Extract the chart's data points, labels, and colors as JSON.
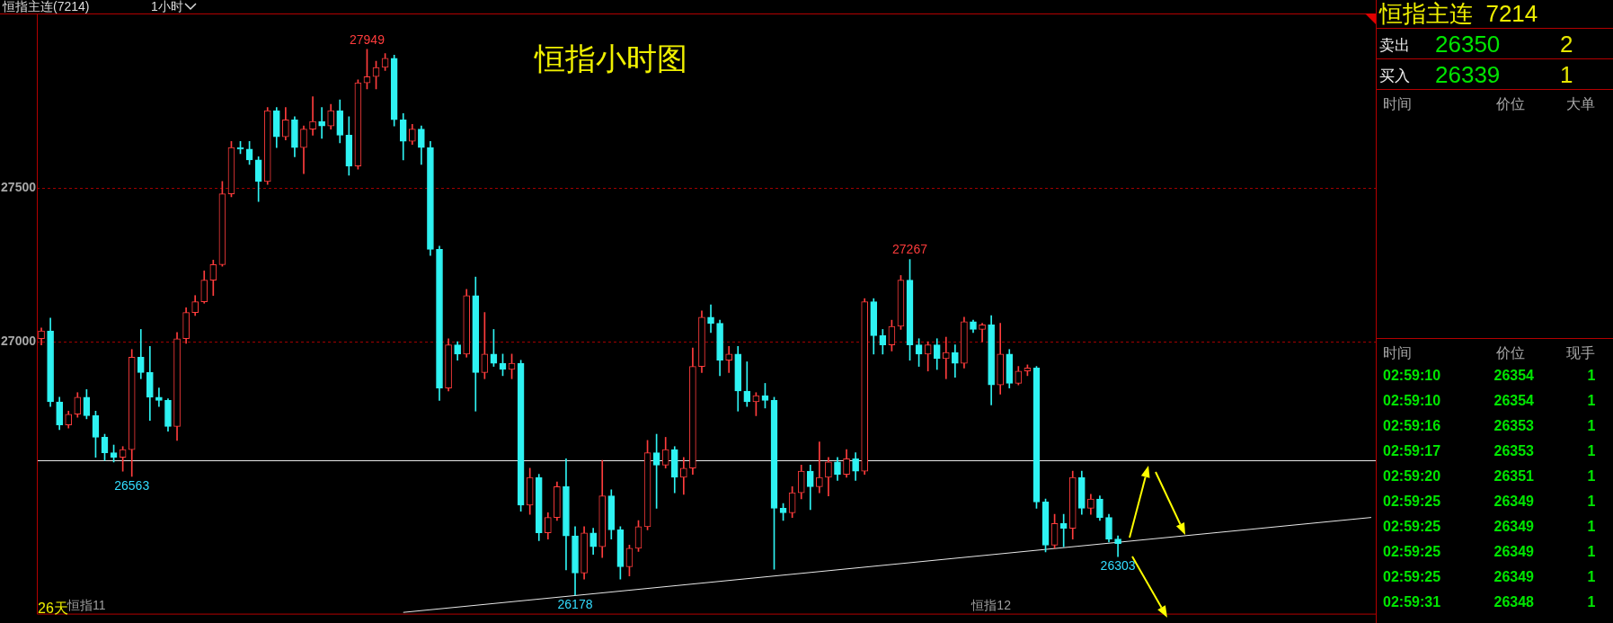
{
  "chart_data": [
    {
      "type": "candlestick",
      "title": "恒指小时图",
      "subtitle": "恒指主连(7214)",
      "categories": [
        null,
        null,
        null,
        null,
        null,
        "恒指11",
        null,
        null,
        null,
        null,
        null,
        null,
        null,
        null,
        null,
        null,
        null,
        null,
        null,
        null,
        null,
        null,
        null,
        null,
        null,
        null,
        null,
        null,
        null,
        null,
        null,
        null,
        null,
        null,
        null,
        null,
        null,
        null,
        null,
        null,
        null,
        null,
        null,
        null,
        null,
        null,
        null,
        null,
        null,
        null,
        null,
        null,
        null,
        null,
        null,
        null,
        null,
        null,
        null,
        null,
        null,
        null,
        null,
        null,
        null,
        null,
        null,
        null,
        null,
        null,
        null,
        null,
        null,
        null,
        null,
        null,
        null,
        null,
        null,
        null,
        null,
        null,
        null,
        null,
        null,
        null,
        null,
        null,
        null,
        null,
        null,
        null,
        null,
        null,
        null,
        null,
        null,
        null,
        null,
        null,
        null,
        null,
        null,
        null,
        null,
        "恒指12",
        null,
        null,
        null,
        null,
        null,
        null,
        null,
        null,
        null,
        null,
        null,
        null,
        null,
        null,
        null,
        null,
        null,
        null,
        null,
        null,
        null,
        null,
        null,
        null,
        null,
        null,
        null,
        null,
        null,
        null,
        null,
        null,
        null,
        null,
        null,
        null,
        null,
        null,
        null,
        null,
        null,
        null
      ],
      "ohlc": [
        [
          27010,
          27045,
          26990,
          27035
        ],
        [
          27035,
          27077,
          26790,
          26805
        ],
        [
          26805,
          26820,
          26715,
          26730
        ],
        [
          26730,
          26775,
          26720,
          26765
        ],
        [
          26765,
          26835,
          26755,
          26820
        ],
        [
          26820,
          26845,
          26750,
          26760
        ],
        [
          26760,
          26775,
          26625,
          26690
        ],
        [
          26690,
          26700,
          26615,
          26640
        ],
        [
          26640,
          26665,
          26610,
          26625
        ],
        [
          26625,
          26660,
          26580,
          26650
        ],
        [
          26650,
          26975,
          26563,
          26950
        ],
        [
          26950,
          27040,
          26880,
          26900
        ],
        [
          26900,
          26985,
          26745,
          26820
        ],
        [
          26820,
          26850,
          26790,
          26810
        ],
        [
          26810,
          26815,
          26710,
          26725
        ],
        [
          26725,
          27030,
          26680,
          27010
        ],
        [
          27010,
          27110,
          26995,
          27095
        ],
        [
          27095,
          27150,
          27085,
          27130
        ],
        [
          27130,
          27230,
          27125,
          27200
        ],
        [
          27200,
          27265,
          27150,
          27250
        ],
        [
          27250,
          27520,
          27245,
          27480
        ],
        [
          27480,
          27650,
          27470,
          27630
        ],
        [
          27630,
          27650,
          27610,
          27625
        ],
        [
          27625,
          27650,
          27575,
          27590
        ],
        [
          27590,
          27600,
          27455,
          27520
        ],
        [
          27520,
          27760,
          27510,
          27750
        ],
        [
          27750,
          27760,
          27630,
          27665
        ],
        [
          27665,
          27760,
          27655,
          27720
        ],
        [
          27720,
          27730,
          27600,
          27630
        ],
        [
          27630,
          27700,
          27545,
          27690
        ],
        [
          27690,
          27795,
          27670,
          27715
        ],
        [
          27715,
          27760,
          27660,
          27700
        ],
        [
          27700,
          27770,
          27690,
          27750
        ],
        [
          27750,
          27785,
          27645,
          27670
        ],
        [
          27670,
          27730,
          27540,
          27570
        ],
        [
          27570,
          27850,
          27560,
          27840
        ],
        [
          27840,
          27949,
          27820,
          27860
        ],
        [
          27860,
          27910,
          27820,
          27890
        ],
        [
          27890,
          27935,
          27880,
          27920
        ],
        [
          27920,
          27930,
          27700,
          27720
        ],
        [
          27720,
          27740,
          27590,
          27650
        ],
        [
          27650,
          27705,
          27640,
          27690
        ],
        [
          27690,
          27700,
          27575,
          27630
        ],
        [
          27630,
          27650,
          27280,
          27300
        ],
        [
          27300,
          27310,
          26810,
          26850
        ],
        [
          26850,
          27010,
          26840,
          26990
        ],
        [
          26990,
          27000,
          26940,
          26960
        ],
        [
          26960,
          27170,
          26950,
          27150
        ],
        [
          27150,
          27210,
          26775,
          26900
        ],
        [
          26900,
          27095,
          26880,
          26960
        ],
        [
          26960,
          27040,
          26920,
          26930
        ],
        [
          26930,
          26960,
          26890,
          26910
        ],
        [
          26910,
          26960,
          26880,
          26930
        ],
        [
          26930,
          26940,
          26450,
          26470
        ],
        [
          26470,
          26590,
          26440,
          26560
        ],
        [
          26560,
          26570,
          26355,
          26380
        ],
        [
          26380,
          26445,
          26360,
          26430
        ],
        [
          26430,
          26545,
          26420,
          26530
        ],
        [
          26530,
          26620,
          26260,
          26370
        ],
        [
          26370,
          26400,
          26178,
          26250
        ],
        [
          26250,
          26400,
          26230,
          26380
        ],
        [
          26380,
          26395,
          26310,
          26335
        ],
        [
          26335,
          26615,
          26300,
          26500
        ],
        [
          26500,
          26520,
          26360,
          26390
        ],
        [
          26390,
          26400,
          26230,
          26270
        ],
        [
          26270,
          26340,
          26240,
          26330
        ],
        [
          26330,
          26420,
          26320,
          26400
        ],
        [
          26400,
          26680,
          26390,
          26640
        ],
        [
          26640,
          26700,
          26460,
          26600
        ],
        [
          26600,
          26690,
          26590,
          26650
        ],
        [
          26650,
          26660,
          26510,
          26560
        ],
        [
          26560,
          26625,
          26505,
          26590
        ],
        [
          26590,
          26980,
          26570,
          26920
        ],
        [
          26920,
          27100,
          26900,
          27080
        ],
        [
          27080,
          27120,
          27030,
          27060
        ],
        [
          27060,
          27070,
          26890,
          26940
        ],
        [
          26940,
          26985,
          26900,
          26960
        ],
        [
          26960,
          26985,
          26775,
          26840
        ],
        [
          26840,
          26935,
          26790,
          26805
        ],
        [
          26805,
          26835,
          26760,
          26825
        ],
        [
          26825,
          26865,
          26785,
          26810
        ],
        [
          26810,
          26820,
          26262,
          26460
        ],
        [
          26460,
          26475,
          26420,
          26445
        ],
        [
          26445,
          26530,
          26430,
          26510
        ],
        [
          26510,
          26600,
          26490,
          26580
        ],
        [
          26580,
          26600,
          26455,
          26530
        ],
        [
          26530,
          26675,
          26510,
          26560
        ],
        [
          26560,
          26625,
          26500,
          26610
        ],
        [
          26610,
          26625,
          26550,
          26570
        ],
        [
          26570,
          26650,
          26560,
          26620
        ],
        [
          26620,
          26640,
          26550,
          26580
        ],
        [
          26580,
          27140,
          26570,
          27130
        ],
        [
          27130,
          27140,
          26960,
          27020
        ],
        [
          27020,
          27040,
          26960,
          26990
        ],
        [
          26990,
          27070,
          26970,
          27050
        ],
        [
          27050,
          27215,
          27040,
          27200
        ],
        [
          27200,
          27267,
          26940,
          26990
        ],
        [
          26990,
          27010,
          26920,
          26960
        ],
        [
          26960,
          27000,
          26905,
          26990
        ],
        [
          26990,
          27010,
          26910,
          26945
        ],
        [
          26945,
          27015,
          26880,
          26965
        ],
        [
          26965,
          26990,
          26885,
          26930
        ],
        [
          26930,
          27080,
          26915,
          27065
        ],
        [
          27065,
          27070,
          27030,
          27040
        ],
        [
          27040,
          27060,
          27000,
          27055
        ],
        [
          27055,
          27085,
          26795,
          26860
        ],
        [
          26860,
          27060,
          26830,
          26960
        ],
        [
          26960,
          26975,
          26850,
          26865
        ],
        [
          26865,
          26920,
          26860,
          26905
        ],
        [
          26905,
          26925,
          26890,
          26915
        ],
        [
          26915,
          26920,
          26460,
          26480
        ],
        [
          26480,
          26490,
          26318,
          26340
        ],
        [
          26340,
          26440,
          26330,
          26410
        ],
        [
          26410,
          26440,
          26335,
          26395
        ],
        [
          26395,
          26580,
          26360,
          26560
        ],
        [
          26560,
          26580,
          26440,
          26460
        ],
        [
          26460,
          26505,
          26440,
          26490
        ],
        [
          26490,
          26500,
          26420,
          26430
        ],
        [
          26430,
          26440,
          26350,
          26360
        ],
        [
          26360,
          26370,
          26303,
          26345
        ],
        null,
        null,
        null,
        null,
        null,
        null,
        null,
        null,
        null,
        null,
        null,
        null,
        null,
        null,
        null,
        null,
        null,
        null,
        null,
        null,
        null,
        null,
        null,
        null,
        null,
        null,
        null,
        null
      ],
      "colors": [
        "#ff3c3c",
        "#2ef2f2",
        "#2ef2f2",
        "#ff3c3c",
        "#ff3c3c",
        "#2ef2f2",
        "#2ef2f2",
        "#2ef2f2",
        "#2ef2f2",
        "#ff3c3c",
        "#ff3c3c",
        "#2ef2f2",
        "#2ef2f2",
        "#2ef2f2",
        "#2ef2f2",
        "#ff3c3c",
        "#ff3c3c",
        "#ff3c3c",
        "#ff3c3c",
        "#ff3c3c",
        "#ff3c3c",
        "#ff3c3c",
        "#2ef2f2",
        "#2ef2f2",
        "#2ef2f2",
        "#ff3c3c",
        "#2ef2f2",
        "#ff3c3c",
        "#2ef2f2",
        "#ff3c3c",
        "#ff3c3c",
        "#2ef2f2",
        "#ff3c3c",
        "#2ef2f2",
        "#2ef2f2",
        "#ff3c3c",
        "#ff3c3c",
        "#ff3c3c",
        "#ff3c3c",
        "#2ef2f2",
        "#2ef2f2",
        "#ff3c3c",
        "#2ef2f2",
        "#2ef2f2",
        "#2ef2f2",
        "#ff3c3c",
        "#2ef2f2",
        "#ff3c3c",
        "#2ef2f2",
        "#ff3c3c",
        "#2ef2f2",
        "#2ef2f2",
        "#ff3c3c",
        "#2ef2f2",
        "#ff3c3c",
        "#2ef2f2",
        "#ff3c3c",
        "#ff3c3c",
        "#2ef2f2",
        "#2ef2f2",
        "#ff3c3c",
        "#2ef2f2",
        "#ff3c3c",
        "#2ef2f2",
        "#2ef2f2",
        "#ff3c3c",
        "#ff3c3c",
        "#ff3c3c",
        "#2ef2f2",
        "#ff3c3c",
        "#2ef2f2",
        "#ff3c3c",
        "#ff3c3c",
        "#ff3c3c",
        "#2ef2f2",
        "#2ef2f2",
        "#ff3c3c",
        "#2ef2f2",
        "#2ef2f2",
        "#ff3c3c",
        "#2ef2f2",
        "#2ef2f2",
        "#2ef2f2",
        "#ff3c3c",
        "#ff3c3c",
        "#2ef2f2",
        "#ff3c3c",
        "#ff3c3c",
        "#2ef2f2",
        "#ff3c3c",
        "#2ef2f2",
        "#ff3c3c",
        "#2ef2f2",
        "#2ef2f2",
        "#ff3c3c",
        "#ff3c3c",
        "#2ef2f2",
        "#2ef2f2",
        "#ff3c3c",
        "#2ef2f2",
        "#ff3c3c",
        "#2ef2f2",
        "#ff3c3c",
        "#2ef2f2",
        "#ff3c3c",
        "#2ef2f2",
        "#ff3c3c",
        "#2ef2f2",
        "#ff3c3c",
        "#ff3c3c",
        "#2ef2f2",
        "#2ef2f2",
        "#ff3c3c",
        "#2ef2f2",
        "#ff3c3c",
        "#2ef2f2",
        "#ff3c3c",
        "#2ef2f2",
        "#2ef2f2",
        "#2ef2f2",
        null,
        null,
        null,
        null,
        null,
        null,
        null,
        null,
        null,
        null,
        null,
        null,
        null,
        null,
        null,
        null,
        null,
        null,
        null,
        null,
        null,
        null,
        null,
        null,
        null,
        null,
        null,
        null
      ],
      "series": [
        {
          "type": "line",
          "color": "#e8e8e8",
          "values": [
            null,
            null,
            null,
            null,
            null,
            null,
            null,
            null,
            null,
            null,
            null,
            null,
            null,
            null,
            null,
            null,
            null,
            null,
            null,
            null,
            null,
            null,
            null,
            null,
            null,
            null,
            null,
            null,
            null,
            null,
            null,
            null,
            null,
            null,
            null,
            null,
            null,
            null,
            null,
            null,
            26122,
            null,
            null,
            null,
            null,
            null,
            null,
            null,
            null,
            null,
            null,
            null,
            null,
            null,
            null,
            null,
            null,
            null,
            null,
            null,
            null,
            null,
            null,
            null,
            null,
            null,
            null,
            null,
            null,
            null,
            null,
            null,
            null,
            null,
            null,
            null,
            null,
            null,
            null,
            null,
            null,
            null,
            null,
            null,
            null,
            null,
            null,
            null,
            null,
            null,
            null,
            null,
            null,
            null,
            null,
            null,
            null,
            null,
            null,
            null,
            null,
            null,
            null,
            null,
            null,
            null,
            null,
            null,
            null,
            null,
            null,
            null,
            null,
            null,
            null,
            null,
            null,
            null,
            null,
            null,
            null,
            null,
            null,
            null,
            null,
            null,
            null,
            null,
            null,
            null,
            null,
            null,
            null,
            null,
            null,
            null,
            null,
            null,
            null,
            null,
            null,
            null,
            null,
            null,
            null,
            null,
            null,
            26430
          ]
        }
      ],
      "ylim": [
        26115,
        28065
      ],
      "yticks": [
        27000,
        27500
      ],
      "grid": "y",
      "ref_lines": [
        {
          "axis": "y",
          "value": 26615,
          "color": "#e8e8e8"
        }
      ],
      "annotations": [
        "1小时",
        "26天",
        {
          "text": "27949",
          "y": 27949
        },
        {
          "text": "26563",
          "y": 26563
        },
        {
          "text": "26178",
          "y": 26178
        },
        {
          "text": "27267",
          "y": 27267
        },
        {
          "text": "26303",
          "y": 26303
        }
      ]
    },
    {
      "type": "other",
      "title": "恒指主连  7214",
      "annotations": [
        "卖出",
        "26350",
        "2",
        "买入",
        "26339",
        "1",
        "时间",
        "价位",
        "大单",
        "时间",
        "价位",
        "现手",
        "02:59:10 26354 1",
        "02:59:10 26354 1",
        "02:59:16 26353 1",
        "02:59:17 26353 1",
        "02:59:20 26351 1",
        "02:59:25 26349 1",
        "02:59:25 26349 1",
        "02:59:25 26349 1",
        "02:59:25 26349 1",
        "02:59:31 26348 1"
      ]
    }
  ]
}
